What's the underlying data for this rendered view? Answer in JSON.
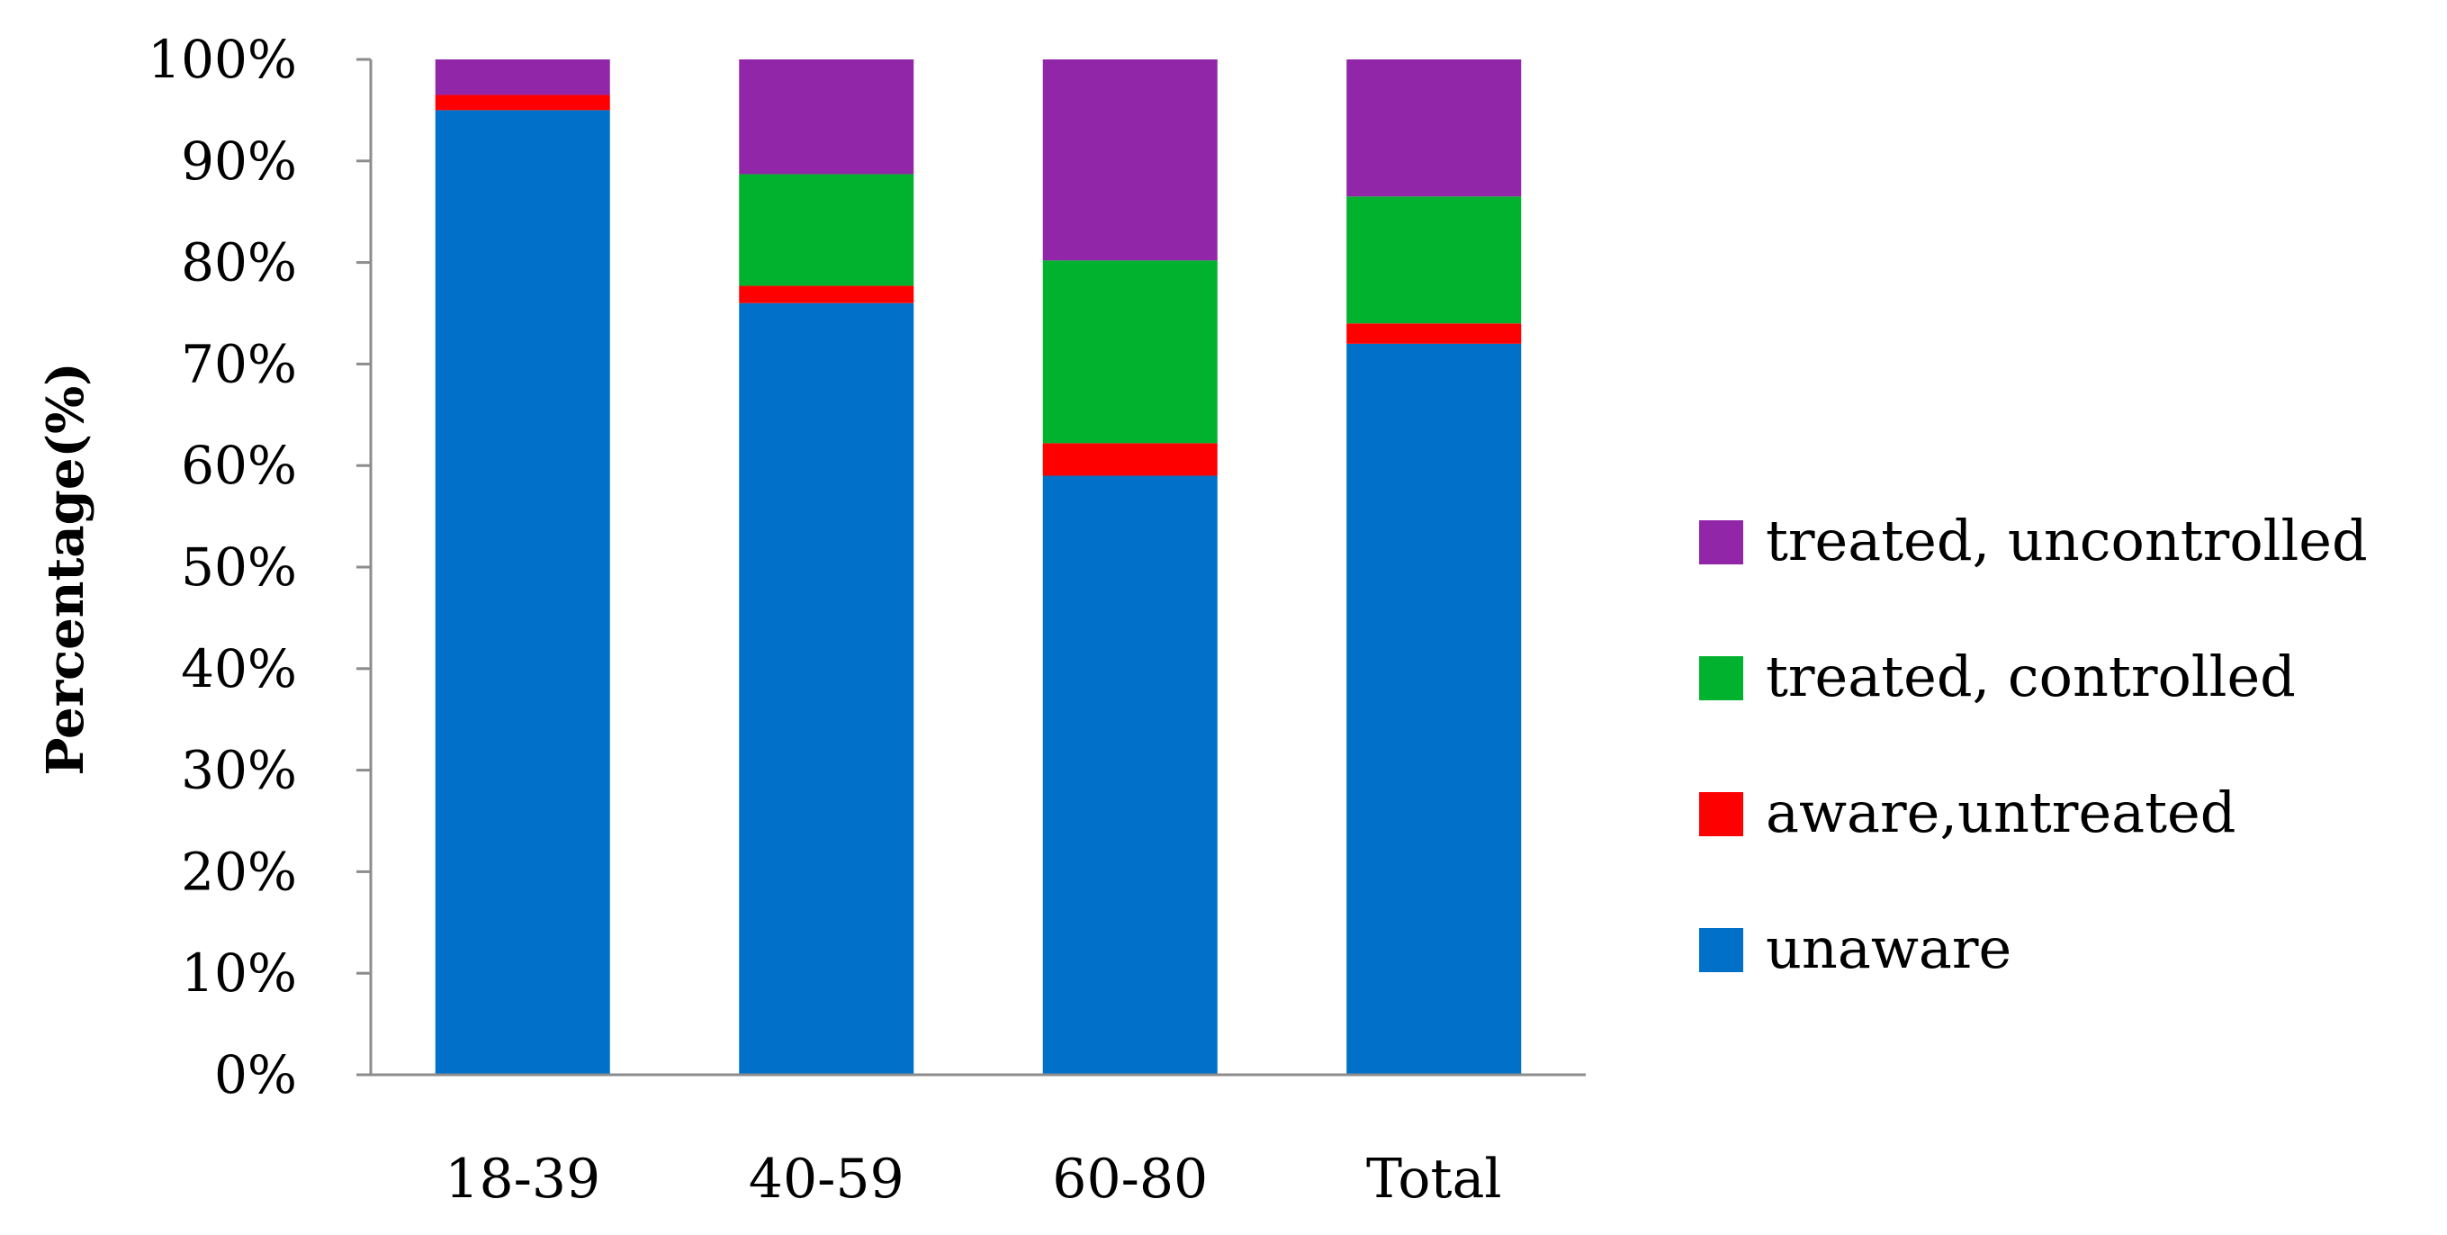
{
  "chart_data": {
    "type": "bar",
    "stacked": true,
    "categories": [
      "18-39",
      "40-59",
      "60-80",
      "Total"
    ],
    "series": [
      {
        "name": "unaware",
        "color": "#0070C8",
        "values": [
          95.0,
          76.0,
          59.0,
          72.0
        ]
      },
      {
        "name": "aware,untreated",
        "color": "#FF0000",
        "values": [
          1.5,
          1.7,
          3.2,
          2.0
        ]
      },
      {
        "name": "treated, controlled",
        "color": "#00B22D",
        "values": [
          0.0,
          11.0,
          18.0,
          12.5
        ]
      },
      {
        "name": "treated, uncontrolled",
        "color": "#9127A8",
        "values": [
          3.5,
          11.3,
          19.8,
          13.5
        ]
      }
    ],
    "yticks": [
      "0%",
      "10%",
      "20%",
      "30%",
      "40%",
      "50%",
      "60%",
      "70%",
      "80%",
      "90%",
      "100%"
    ],
    "ylim": [
      0,
      100
    ],
    "xlabel": "",
    "ylabel": "Percentage(%)",
    "title": "",
    "grid": false,
    "legend": {
      "position": "right",
      "order": [
        "treated, uncontrolled",
        "treated, controlled",
        "aware,untreated",
        "unaware"
      ]
    }
  }
}
